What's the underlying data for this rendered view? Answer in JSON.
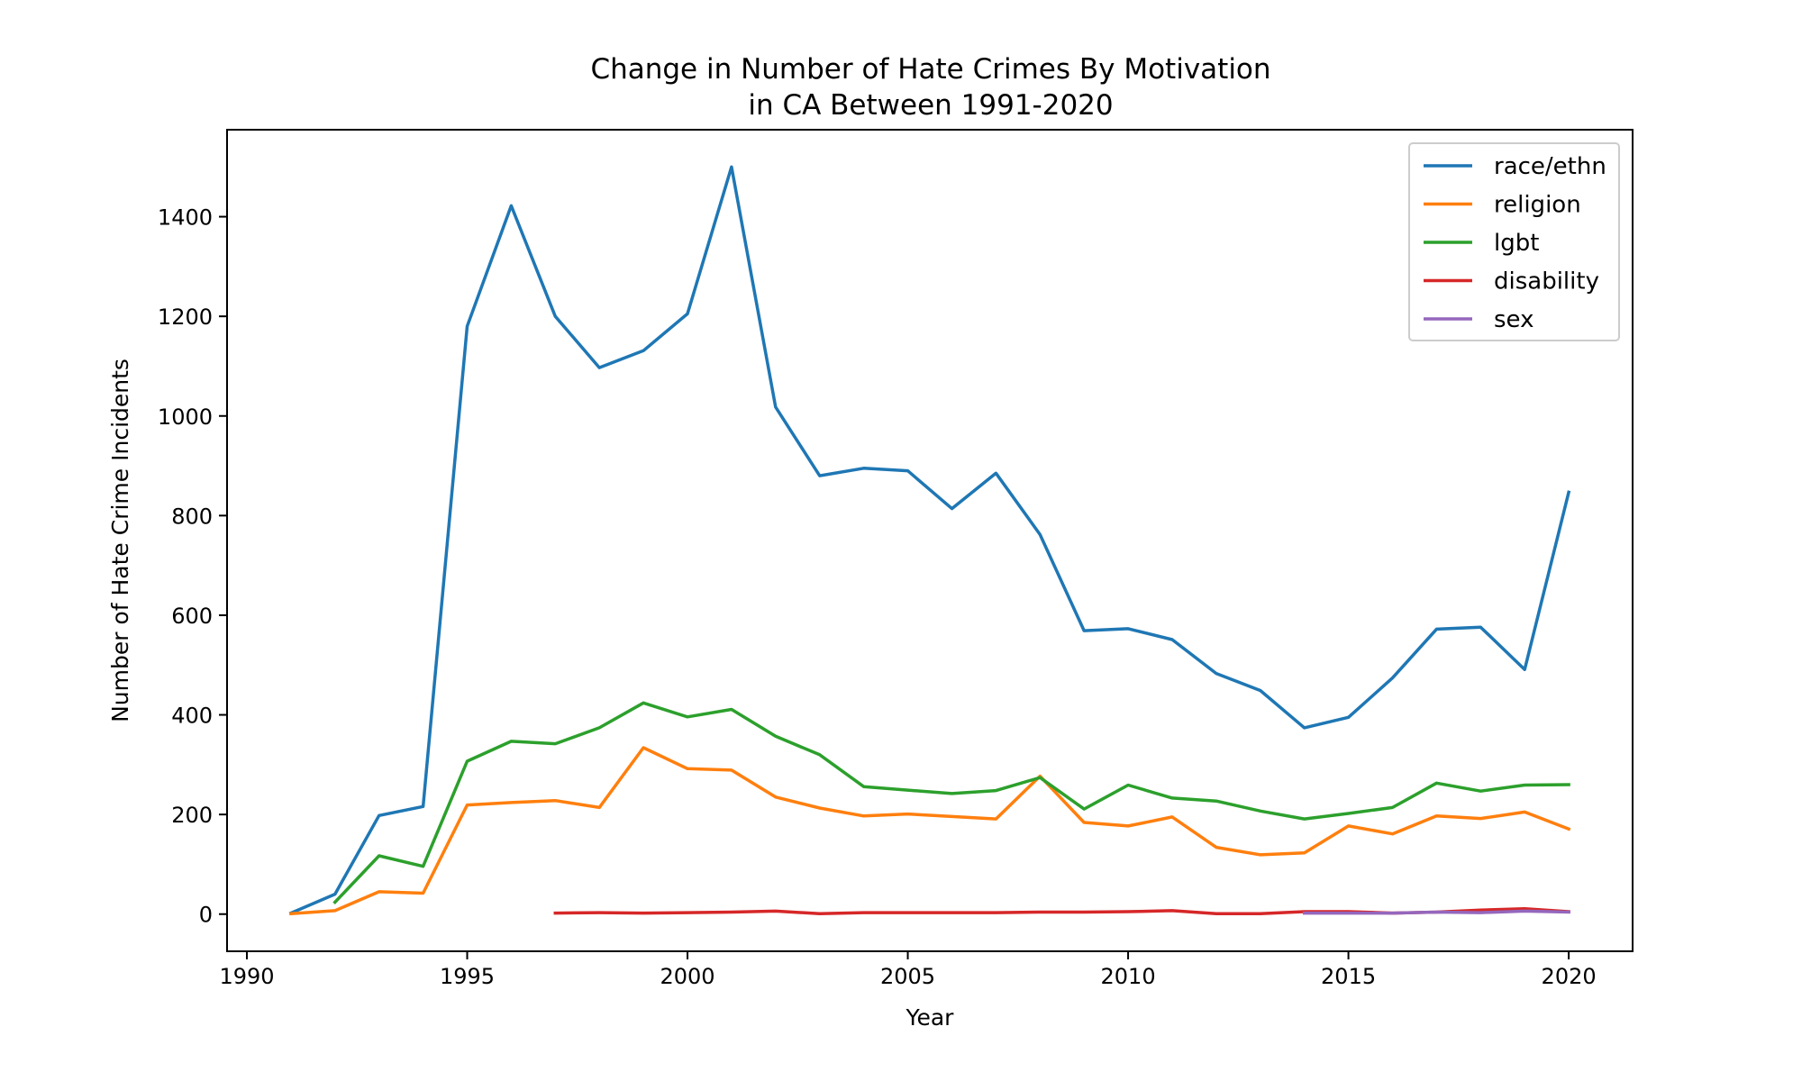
{
  "chart_data": {
    "type": "line",
    "title_lines": [
      "Change in Number of Hate Crimes By Motivation",
      "in CA Between 1991-2020"
    ],
    "xlabel": "Year",
    "ylabel": "Number of Hate Crime Incidents",
    "xlim": [
      1989.55,
      2021.45
    ],
    "ylim": [
      -74.6,
      1574.6
    ],
    "x_ticks": [
      1990,
      1995,
      2000,
      2005,
      2010,
      2015,
      2020
    ],
    "y_ticks": [
      0,
      200,
      400,
      600,
      800,
      1000,
      1200,
      1400
    ],
    "grid": false,
    "legend_position": "top-right",
    "series": [
      {
        "name": "race/ethn",
        "color": "#1f77b4",
        "x": [
          1991,
          1992,
          1993,
          1994,
          1995,
          1996,
          1997,
          1998,
          1999,
          2000,
          2001,
          2002,
          2003,
          2004,
          2005,
          2006,
          2007,
          2008,
          2009,
          2010,
          2011,
          2012,
          2013,
          2014,
          2015,
          2016,
          2017,
          2018,
          2019,
          2020
        ],
        "values": [
          2,
          40,
          198,
          216,
          1180,
          1422,
          1200,
          1097,
          1131,
          1205,
          1500,
          1018,
          880,
          895,
          890,
          814,
          885,
          762,
          569,
          573,
          551,
          483,
          449,
          374,
          395,
          474,
          572,
          576,
          491,
          847
        ]
      },
      {
        "name": "religion",
        "color": "#ff7f0e",
        "x": [
          1991,
          1992,
          1993,
          1994,
          1995,
          1996,
          1997,
          1998,
          1999,
          2000,
          2001,
          2002,
          2003,
          2004,
          2005,
          2006,
          2007,
          2008,
          2009,
          2010,
          2011,
          2012,
          2013,
          2014,
          2015,
          2016,
          2017,
          2018,
          2019,
          2020
        ],
        "values": [
          1,
          7,
          45,
          42,
          219,
          224,
          228,
          214,
          334,
          292,
          289,
          235,
          213,
          197,
          201,
          196,
          191,
          277,
          184,
          177,
          195,
          134,
          119,
          123,
          177,
          161,
          197,
          192,
          205,
          171
        ]
      },
      {
        "name": "lgbt",
        "color": "#2ca02c",
        "x": [
          1992,
          1993,
          1994,
          1995,
          1996,
          1997,
          1998,
          1999,
          2000,
          2001,
          2002,
          2003,
          2004,
          2005,
          2006,
          2007,
          2008,
          2009,
          2010,
          2011,
          2012,
          2013,
          2014,
          2015,
          2016,
          2017,
          2018,
          2019,
          2020
        ],
        "values": [
          24,
          117,
          96,
          307,
          347,
          342,
          374,
          424,
          396,
          411,
          357,
          320,
          256,
          249,
          242,
          248,
          274,
          211,
          259,
          233,
          227,
          207,
          191,
          202,
          214,
          263,
          247,
          259,
          260
        ]
      },
      {
        "name": "disability",
        "color": "#d62728",
        "x": [
          1997,
          1998,
          1999,
          2000,
          2001,
          2002,
          2003,
          2004,
          2005,
          2006,
          2007,
          2008,
          2009,
          2010,
          2011,
          2012,
          2013,
          2014,
          2015,
          2016,
          2017,
          2018,
          2019,
          2020
        ],
        "values": [
          2,
          3,
          2,
          3,
          4,
          6,
          1,
          3,
          3,
          3,
          3,
          4,
          4,
          5,
          7,
          1,
          1,
          5,
          5,
          2,
          4,
          8,
          11,
          5
        ]
      },
      {
        "name": "sex",
        "color": "#9467bd",
        "x": [
          2014,
          2015,
          2016,
          2017,
          2018,
          2019,
          2020
        ],
        "values": [
          2,
          2,
          2,
          4,
          3,
          6,
          4
        ]
      }
    ]
  }
}
